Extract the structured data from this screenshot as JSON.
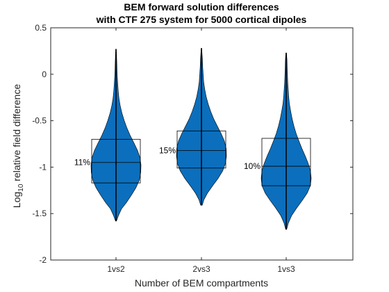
{
  "chart_data": {
    "type": "violin",
    "title_line1": "BEM forward solution differences",
    "title_line2": "with CTF 275 system for 5000 cortical dipoles",
    "xlabel": "Number of BEM compartments",
    "ylabel_prefix": "Log",
    "ylabel_sub": "10",
    "ylabel_suffix": " relative field difference",
    "ylim": [
      -2,
      0.5
    ],
    "yticks": [
      0.5,
      0,
      -0.5,
      -1,
      -1.5,
      -2
    ],
    "ytick_labels": [
      "0.5",
      "0",
      "-0.5",
      "-1",
      "-1.5",
      "-2"
    ],
    "categories": [
      "1vs2",
      "2vs3",
      "1vs3"
    ],
    "fill_color": "#0b6fbd",
    "grid": false,
    "violins": [
      {
        "category": "1vs2",
        "percent_label": "11%",
        "min": -1.58,
        "max": 0.27,
        "q1": -1.17,
        "median": -0.95,
        "q3": -0.7,
        "density": [
          [
            -1.58,
            0.02
          ],
          [
            -1.52,
            0.1
          ],
          [
            -1.45,
            0.22
          ],
          [
            -1.38,
            0.42
          ],
          [
            -1.3,
            0.62
          ],
          [
            -1.22,
            0.8
          ],
          [
            -1.14,
            0.93
          ],
          [
            -1.06,
            0.99
          ],
          [
            -0.98,
            1.0
          ],
          [
            -0.9,
            0.96
          ],
          [
            -0.82,
            0.86
          ],
          [
            -0.74,
            0.72
          ],
          [
            -0.66,
            0.57
          ],
          [
            -0.58,
            0.44
          ],
          [
            -0.5,
            0.33
          ],
          [
            -0.42,
            0.24
          ],
          [
            -0.34,
            0.17
          ],
          [
            -0.26,
            0.12
          ],
          [
            -0.18,
            0.09
          ],
          [
            -0.1,
            0.07
          ],
          [
            -0.02,
            0.05
          ],
          [
            0.06,
            0.04
          ],
          [
            0.14,
            0.03
          ],
          [
            0.22,
            0.02
          ],
          [
            0.27,
            0.01
          ]
        ]
      },
      {
        "category": "2vs3",
        "percent_label": "15%",
        "min": -1.41,
        "max": 0.28,
        "q1": -1.01,
        "median": -0.82,
        "q3": -0.61,
        "density": [
          [
            -1.41,
            0.03
          ],
          [
            -1.35,
            0.1
          ],
          [
            -1.28,
            0.24
          ],
          [
            -1.2,
            0.45
          ],
          [
            -1.12,
            0.67
          ],
          [
            -1.04,
            0.85
          ],
          [
            -0.96,
            0.96
          ],
          [
            -0.88,
            1.0
          ],
          [
            -0.8,
            0.99
          ],
          [
            -0.72,
            0.92
          ],
          [
            -0.64,
            0.79
          ],
          [
            -0.56,
            0.64
          ],
          [
            -0.48,
            0.49
          ],
          [
            -0.4,
            0.37
          ],
          [
            -0.32,
            0.27
          ],
          [
            -0.24,
            0.19
          ],
          [
            -0.16,
            0.13
          ],
          [
            -0.08,
            0.09
          ],
          [
            0.0,
            0.07
          ],
          [
            0.08,
            0.05
          ],
          [
            0.16,
            0.04
          ],
          [
            0.24,
            0.02
          ],
          [
            0.28,
            0.01
          ]
        ]
      },
      {
        "category": "1vs3",
        "percent_label": "10%",
        "min": -1.67,
        "max": 0.23,
        "q1": -1.2,
        "median": -0.99,
        "q3": -0.69,
        "density": [
          [
            -1.67,
            0.02
          ],
          [
            -1.6,
            0.09
          ],
          [
            -1.52,
            0.22
          ],
          [
            -1.44,
            0.42
          ],
          [
            -1.36,
            0.64
          ],
          [
            -1.28,
            0.84
          ],
          [
            -1.2,
            0.97
          ],
          [
            -1.12,
            1.0
          ],
          [
            -1.04,
            0.97
          ],
          [
            -0.96,
            0.88
          ],
          [
            -0.88,
            0.76
          ],
          [
            -0.8,
            0.63
          ],
          [
            -0.72,
            0.51
          ],
          [
            -0.64,
            0.4
          ],
          [
            -0.56,
            0.31
          ],
          [
            -0.48,
            0.24
          ],
          [
            -0.4,
            0.18
          ],
          [
            -0.32,
            0.13
          ],
          [
            -0.24,
            0.1
          ],
          [
            -0.16,
            0.08
          ],
          [
            -0.08,
            0.06
          ],
          [
            0.0,
            0.05
          ],
          [
            0.08,
            0.04
          ],
          [
            0.16,
            0.03
          ],
          [
            0.23,
            0.01
          ]
        ]
      }
    ]
  }
}
